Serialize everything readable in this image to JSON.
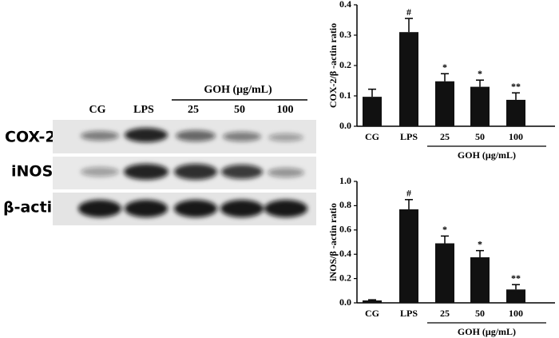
{
  "blot": {
    "lanes": [
      "CG",
      "LPS",
      "25",
      "50",
      "100"
    ],
    "group_label": "GOH (μg/mL)",
    "rows": [
      "COX-2",
      "iNOS",
      "β-actin"
    ]
  },
  "chart_data": [
    {
      "type": "bar",
      "ylabel": "COX-2/β -actin ratio",
      "categories": [
        "CG",
        "LPS",
        "25",
        "50",
        "100"
      ],
      "values": [
        0.097,
        0.31,
        0.148,
        0.13,
        0.087
      ],
      "errors": [
        0.025,
        0.045,
        0.025,
        0.022,
        0.023
      ],
      "annotations": [
        "",
        "#",
        "*",
        "*",
        "**"
      ],
      "group_label": "GOH (μg/mL)",
      "color": "#111111",
      "ylim": [
        0,
        0.4
      ],
      "yticks": [
        {
          "value": 0,
          "label": "0.0"
        },
        0.1,
        0.2,
        0.3,
        0.4
      ]
    },
    {
      "type": "bar",
      "ylabel": "iNOS/β -actin ratio",
      "categories": [
        "CG",
        "LPS",
        "25",
        "50",
        "100"
      ],
      "values": [
        0.02,
        0.77,
        0.49,
        0.375,
        0.11
      ],
      "errors": [
        0.005,
        0.08,
        0.06,
        0.055,
        0.04
      ],
      "annotations": [
        "",
        "#",
        "*",
        "*",
        "**"
      ],
      "group_label": "GOH (μg/mL)",
      "color": "#111111",
      "ylim": [
        0,
        1.0
      ],
      "yticks": [
        {
          "value": 0,
          "label": "0.0"
        },
        0.2,
        0.4,
        0.6,
        0.8,
        {
          "value": 1.0,
          "label": "1.0"
        }
      ]
    }
  ]
}
